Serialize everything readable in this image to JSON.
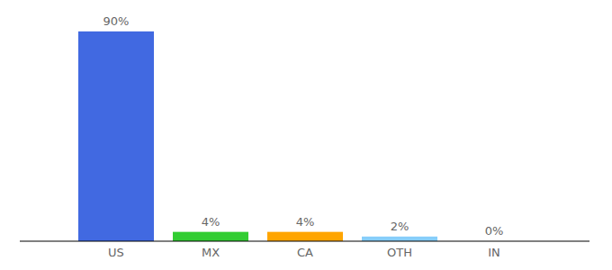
{
  "chart_data": {
    "type": "bar",
    "categories": [
      "US",
      "MX",
      "CA",
      "OTH",
      "IN"
    ],
    "values": [
      90,
      4,
      4,
      2,
      0
    ],
    "value_labels": [
      "90%",
      "4%",
      "4%",
      "2%",
      "0%"
    ],
    "colors": [
      "#4169e1",
      "#32cd32",
      "#ffa500",
      "#87cefa",
      "#ba55d3"
    ],
    "ylim": [
      0,
      100
    ],
    "data_labels": true,
    "tick_labels": "x",
    "grid": false
  }
}
